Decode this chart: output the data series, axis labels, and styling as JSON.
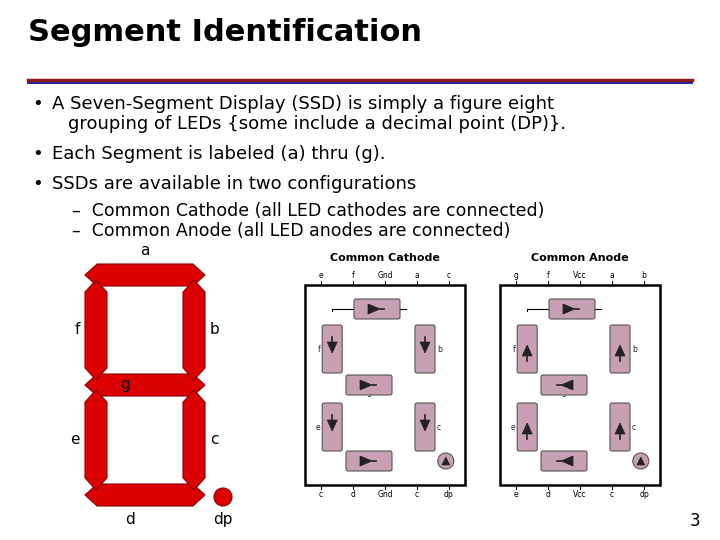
{
  "title": "Segment Identification",
  "title_fontsize": 22,
  "title_color": "#000000",
  "background_color": "#ffffff",
  "divider_color1": "#8B1A1A",
  "divider_color2": "#000080",
  "bullet_points": [
    "A Seven-Segment Display (SSD) is simply a figure eight\n    grouping of LEDs {some include a decimal point (DP)}.",
    "Each Segment is labeled (a) thru (g).",
    "SSDs are available in two configurations"
  ],
  "sub_bullets": [
    "–  Common Cathode (all LED cathodes are connected)",
    "–  Common Anode (all LED anodes are connected)"
  ],
  "bullet_fontsize": 13,
  "sub_bullet_fontsize": 12.5,
  "segment_color": "#dd0000",
  "label_color": "#000000",
  "page_number": "3",
  "cc_pin_top": [
    "e",
    "f",
    "Gnd",
    "a",
    "c"
  ],
  "cc_pin_bot": [
    "c",
    "d",
    "Gnd",
    "c",
    "dp"
  ],
  "ca_pin_top": [
    "g",
    "f",
    "Vcc",
    "a",
    "b"
  ],
  "ca_pin_bot": [
    "e",
    "d",
    "Vcc",
    "c",
    "dp"
  ]
}
